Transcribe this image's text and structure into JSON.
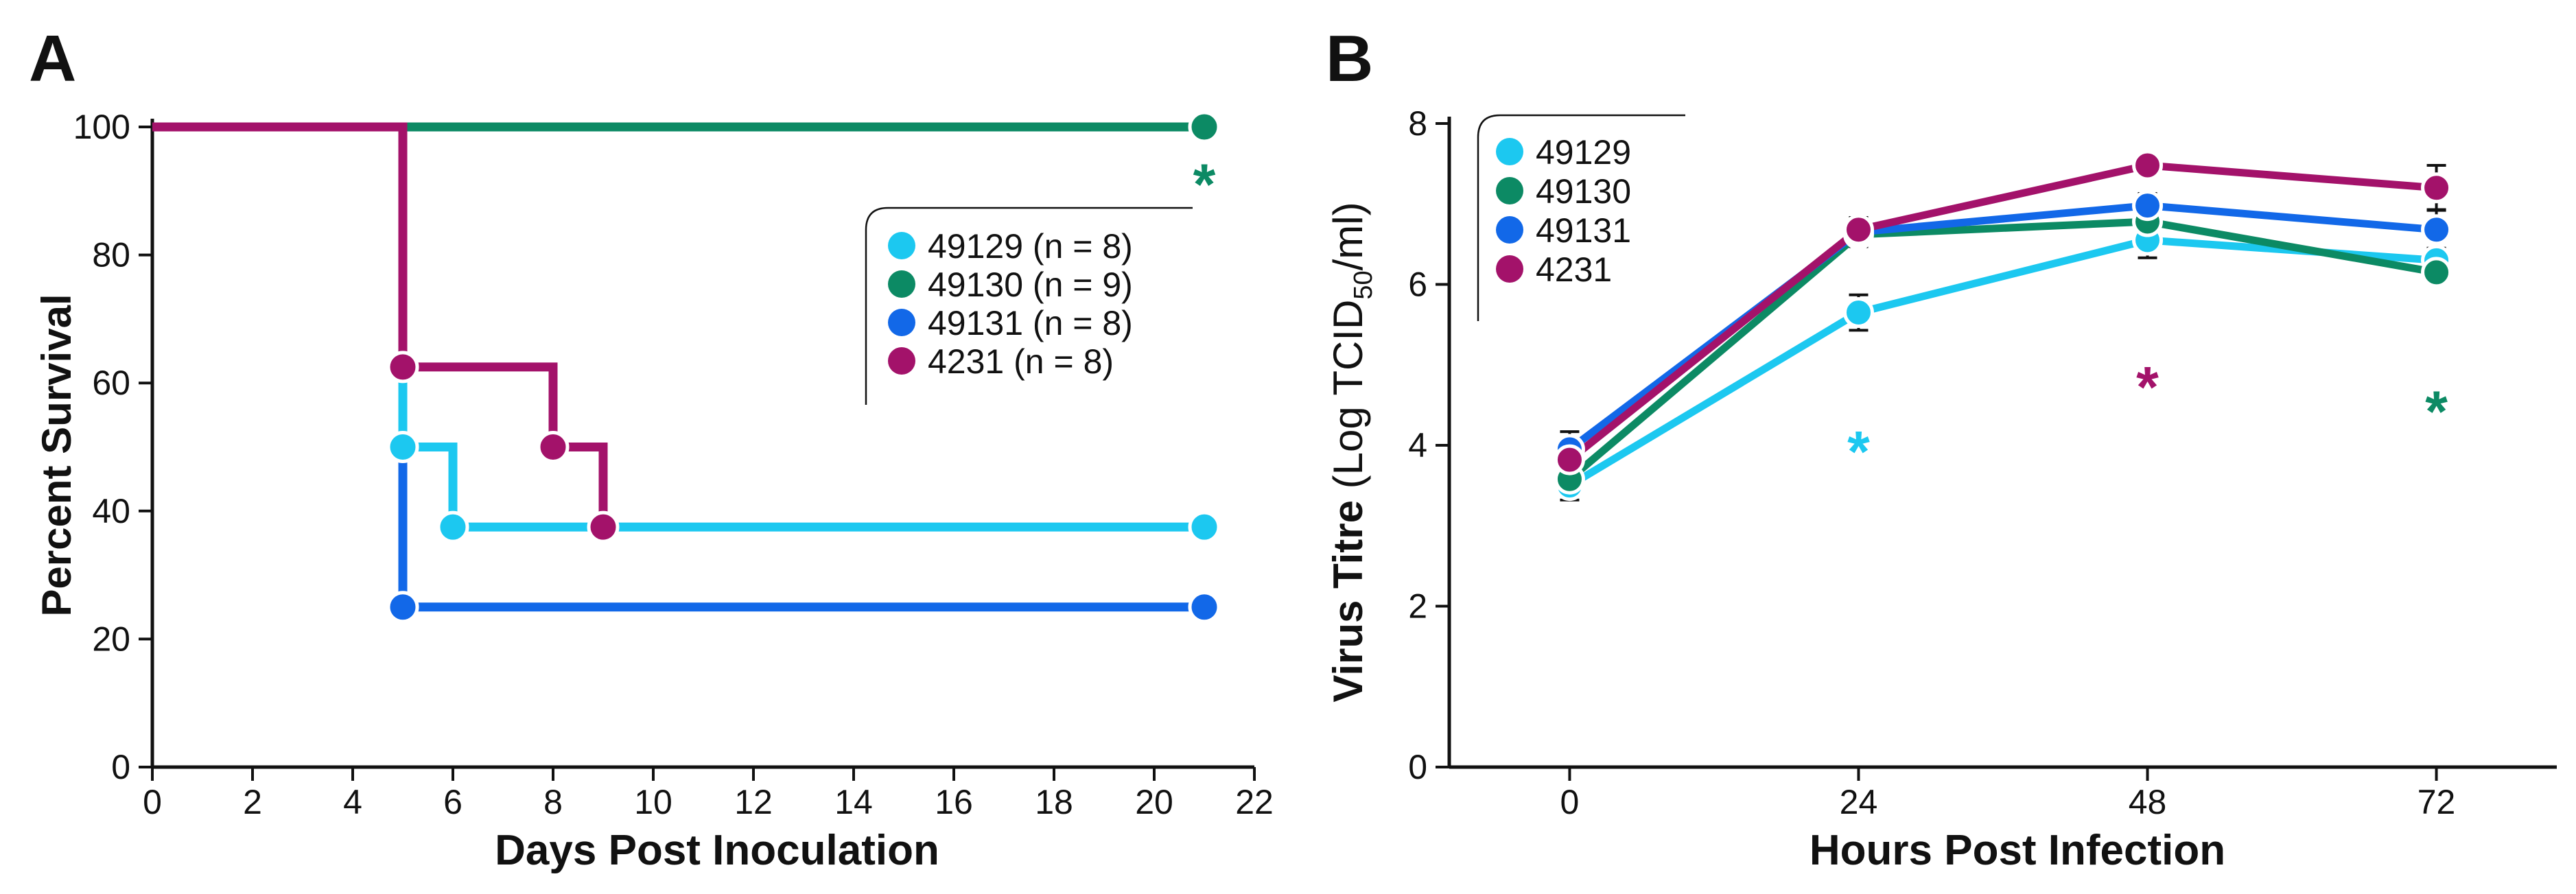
{
  "panels": {
    "a": {
      "label": "A"
    },
    "b": {
      "label": "B"
    }
  },
  "chart_data": [
    {
      "type": "line",
      "subtype": "kaplan-meier survival curve",
      "panel": "A",
      "xlabel": "Days Post Inoculation",
      "ylabel": "Percent Survival",
      "xlim": [
        0,
        22
      ],
      "ylim": [
        0,
        100
      ],
      "xticks": [
        0,
        2,
        4,
        6,
        8,
        10,
        12,
        14,
        16,
        18,
        20,
        22
      ],
      "yticks": [
        0,
        20,
        40,
        60,
        80,
        100
      ],
      "legend_position": "upper-right",
      "series": [
        {
          "name": "49129 (n = 8)",
          "color": "#1CC8F0",
          "steps": [
            [
              0,
              100
            ],
            [
              5,
              100
            ],
            [
              5,
              50
            ],
            [
              6,
              50
            ],
            [
              6,
              37.5
            ],
            [
              21,
              37.5
            ]
          ],
          "markers": [
            [
              5,
              50
            ],
            [
              6,
              37.5
            ],
            [
              21,
              37.5
            ]
          ]
        },
        {
          "name": "49130 (n = 9)",
          "color": "#0C8A64",
          "steps": [
            [
              0,
              100
            ],
            [
              21,
              100
            ]
          ],
          "markers": [
            [
              21,
              100
            ]
          ]
        },
        {
          "name": "49131 (n = 8)",
          "color": "#1268E8",
          "steps": [
            [
              0,
              100
            ],
            [
              5,
              100
            ],
            [
              5,
              25
            ],
            [
              21,
              25
            ]
          ],
          "markers": [
            [
              5,
              25
            ],
            [
              21,
              25
            ]
          ]
        },
        {
          "name": "4231 (n = 8)",
          "color": "#A3126A",
          "steps": [
            [
              0,
              100
            ],
            [
              5,
              100
            ],
            [
              5,
              62.5
            ],
            [
              8,
              62.5
            ],
            [
              8,
              50
            ],
            [
              9,
              50
            ],
            [
              9,
              37.5
            ]
          ],
          "markers": [
            [
              5,
              62.5
            ],
            [
              8,
              50
            ],
            [
              9,
              37.5
            ]
          ]
        }
      ],
      "annotations": [
        {
          "text": "*",
          "x": 21,
          "y": 92,
          "color": "#0C8A64"
        }
      ]
    },
    {
      "type": "line",
      "subtype": "mean with error bars",
      "panel": "B",
      "xlabel": "Hours Post Infection",
      "ylabel": {
        "bold": "Virus Titre",
        "light": " (Log TCID",
        "sub": "50",
        "light_end": "/ml)"
      },
      "x": [
        0,
        24,
        48,
        72
      ],
      "xlim": [
        -10,
        82
      ],
      "ylim": [
        0,
        8
      ],
      "xticks": [
        0,
        24,
        48,
        72
      ],
      "yticks": [
        0,
        2,
        4,
        6,
        8
      ],
      "legend_position": "upper-left",
      "series": [
        {
          "name": "49129",
          "color": "#1CC8F0",
          "values": [
            3.5,
            5.65,
            6.55,
            6.3
          ],
          "errors": [
            0.18,
            0.22,
            0.22,
            0.15
          ]
        },
        {
          "name": "49130",
          "color": "#0C8A64",
          "values": [
            3.58,
            6.62,
            6.78,
            6.15
          ],
          "errors": [
            0.18,
            0.15,
            0.15,
            0.12
          ]
        },
        {
          "name": "49131",
          "color": "#1268E8",
          "values": [
            3.95,
            6.65,
            6.98,
            6.68
          ],
          "errors": [
            0.22,
            0.18,
            0.15,
            0.25
          ]
        },
        {
          "name": "4231",
          "color": "#A3126A",
          "values": [
            3.82,
            6.68,
            7.48,
            7.2
          ],
          "errors": [
            0.18,
            0.15,
            0.12,
            0.28
          ]
        }
      ],
      "annotations": [
        {
          "text": "*",
          "x": 24,
          "y": 4.0,
          "color": "#1CC8F0"
        },
        {
          "text": "*",
          "x": 48,
          "y": 4.8,
          "color": "#A3126A"
        },
        {
          "text": "*",
          "x": 72,
          "y": 4.5,
          "color": "#0C8A64"
        }
      ]
    }
  ]
}
